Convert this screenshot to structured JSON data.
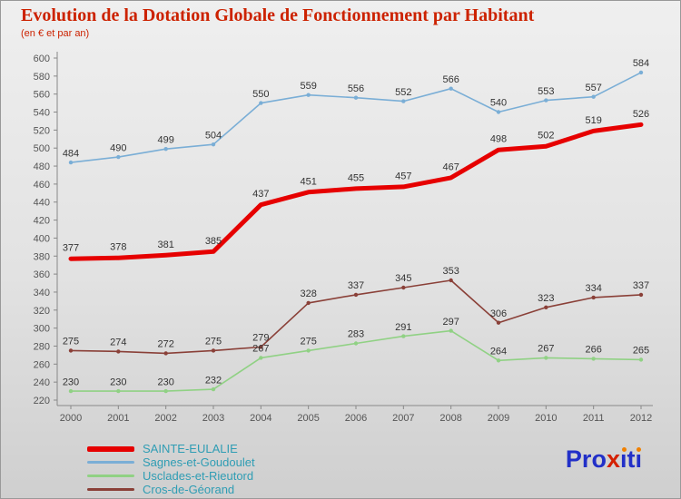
{
  "title": "Evolution de la Dotation Globale de Fonctionnement par Habitant",
  "subtitle": "(en € et par an)",
  "chart_data": {
    "type": "line",
    "x": [
      2000,
      2001,
      2002,
      2003,
      2004,
      2005,
      2006,
      2007,
      2008,
      2009,
      2010,
      2011,
      2012
    ],
    "series": [
      {
        "name": "SAINTE-EULALIE",
        "color": "#e60000",
        "width": 5,
        "marker": false,
        "values": [
          377,
          378,
          381,
          385,
          437,
          451,
          455,
          457,
          467,
          498,
          502,
          519,
          526
        ]
      },
      {
        "name": "Sagnes-et-Goudoulet",
        "color": "#7aaed6",
        "width": 1.6,
        "marker": true,
        "values": [
          484,
          490,
          499,
          504,
          550,
          559,
          556,
          552,
          566,
          540,
          553,
          557,
          584
        ]
      },
      {
        "name": "Usclades-et-Rieutord",
        "color": "#90d184",
        "width": 1.6,
        "marker": true,
        "values": [
          230,
          230,
          230,
          232,
          267,
          275,
          283,
          291,
          297,
          264,
          267,
          266,
          265
        ]
      },
      {
        "name": "Cros-de-Géorand",
        "color": "#8a4038",
        "width": 1.6,
        "marker": true,
        "values": [
          275,
          274,
          272,
          275,
          279,
          328,
          337,
          345,
          353,
          306,
          323,
          334,
          337
        ]
      }
    ],
    "ylim": [
      220,
      600
    ],
    "ytick_step": 20,
    "grid": false,
    "legend_position": "bottom-left",
    "title": "Evolution de la Dotation Globale de Fonctionnement par Habitant",
    "xlabel": "",
    "ylabel": ""
  },
  "colors": {
    "title": "#cc2200",
    "axis": "#888888",
    "tick_text": "#555555",
    "value_label": "#333333",
    "legend_text": "#2f9db4"
  },
  "brand": {
    "name": "Proxiti",
    "letters": [
      {
        "c": "P",
        "color": "#2230c8"
      },
      {
        "c": "r",
        "color": "#2230c8"
      },
      {
        "c": "o",
        "color": "#2230c8"
      },
      {
        "c": "x",
        "color": "#d42000"
      },
      {
        "c": "ı",
        "color": "#2230c8",
        "dot": true
      },
      {
        "c": "t",
        "color": "#2230c8"
      },
      {
        "c": "ı",
        "color": "#2230c8",
        "dot": true
      }
    ]
  }
}
